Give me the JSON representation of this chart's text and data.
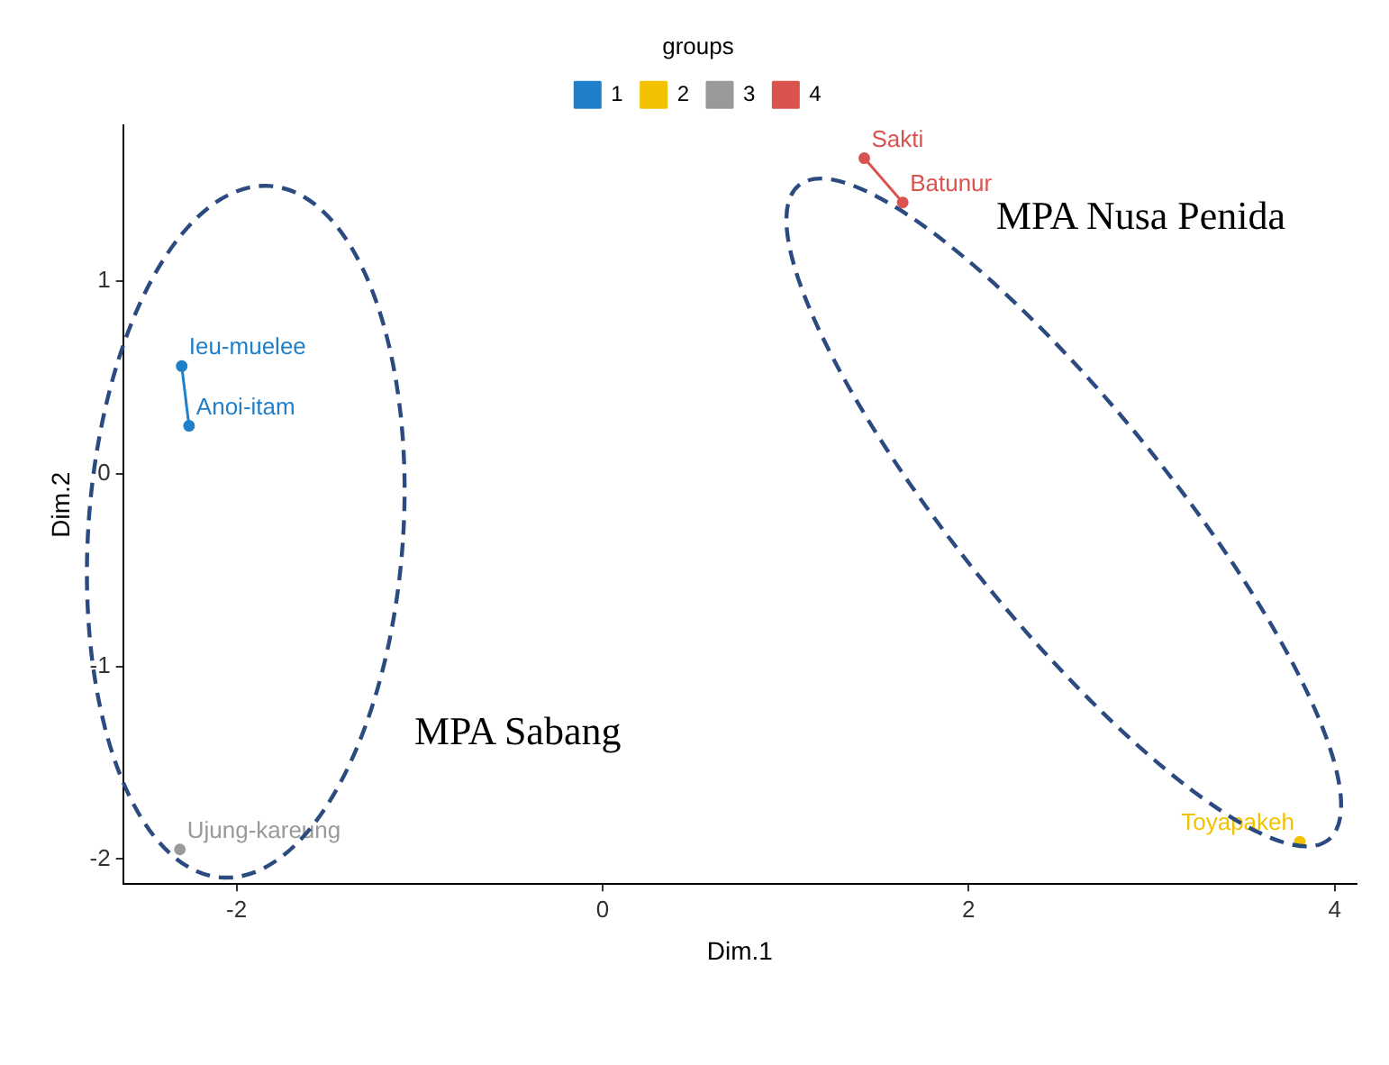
{
  "chart_data": {
    "type": "line",
    "xlabel": "Dim.1",
    "ylabel": "Dim.2",
    "legend_title": "groups",
    "legend": "top",
    "grid": false,
    "marker": "circle",
    "line_style": "solid",
    "xlim": [
      -2.62,
      4.12
    ],
    "xticks": [
      -2,
      0,
      2,
      4
    ],
    "ylim": [
      -2.13,
      1.81
    ],
    "yticks": [
      -2,
      -1,
      0,
      1
    ],
    "series": [
      {
        "name": "1",
        "color": "#1f7fc9",
        "x": [
          -2.3,
          -2.26
        ],
        "values": [
          0.56,
          0.25
        ],
        "value_labels": [
          "Ieu-muelee",
          "Anoi-itam"
        ]
      },
      {
        "name": "2",
        "color": "#f2c200",
        "x": [
          3.81
        ],
        "values": [
          -1.91
        ],
        "value_labels": [
          "Toyapakeh"
        ]
      },
      {
        "name": "3",
        "color": "#999999",
        "x": [
          -2.31
        ],
        "values": [
          -1.95
        ],
        "value_labels": [
          "Ujung-kareung"
        ]
      },
      {
        "name": "4",
        "color": "#d9534f",
        "x": [
          1.43,
          1.64
        ],
        "values": [
          1.64,
          1.41
        ],
        "value_labels": [
          "Sakti",
          "Batunur"
        ]
      }
    ],
    "annotations": [
      "MPA Sabang",
      "MPA Nusa Penida"
    ]
  }
}
